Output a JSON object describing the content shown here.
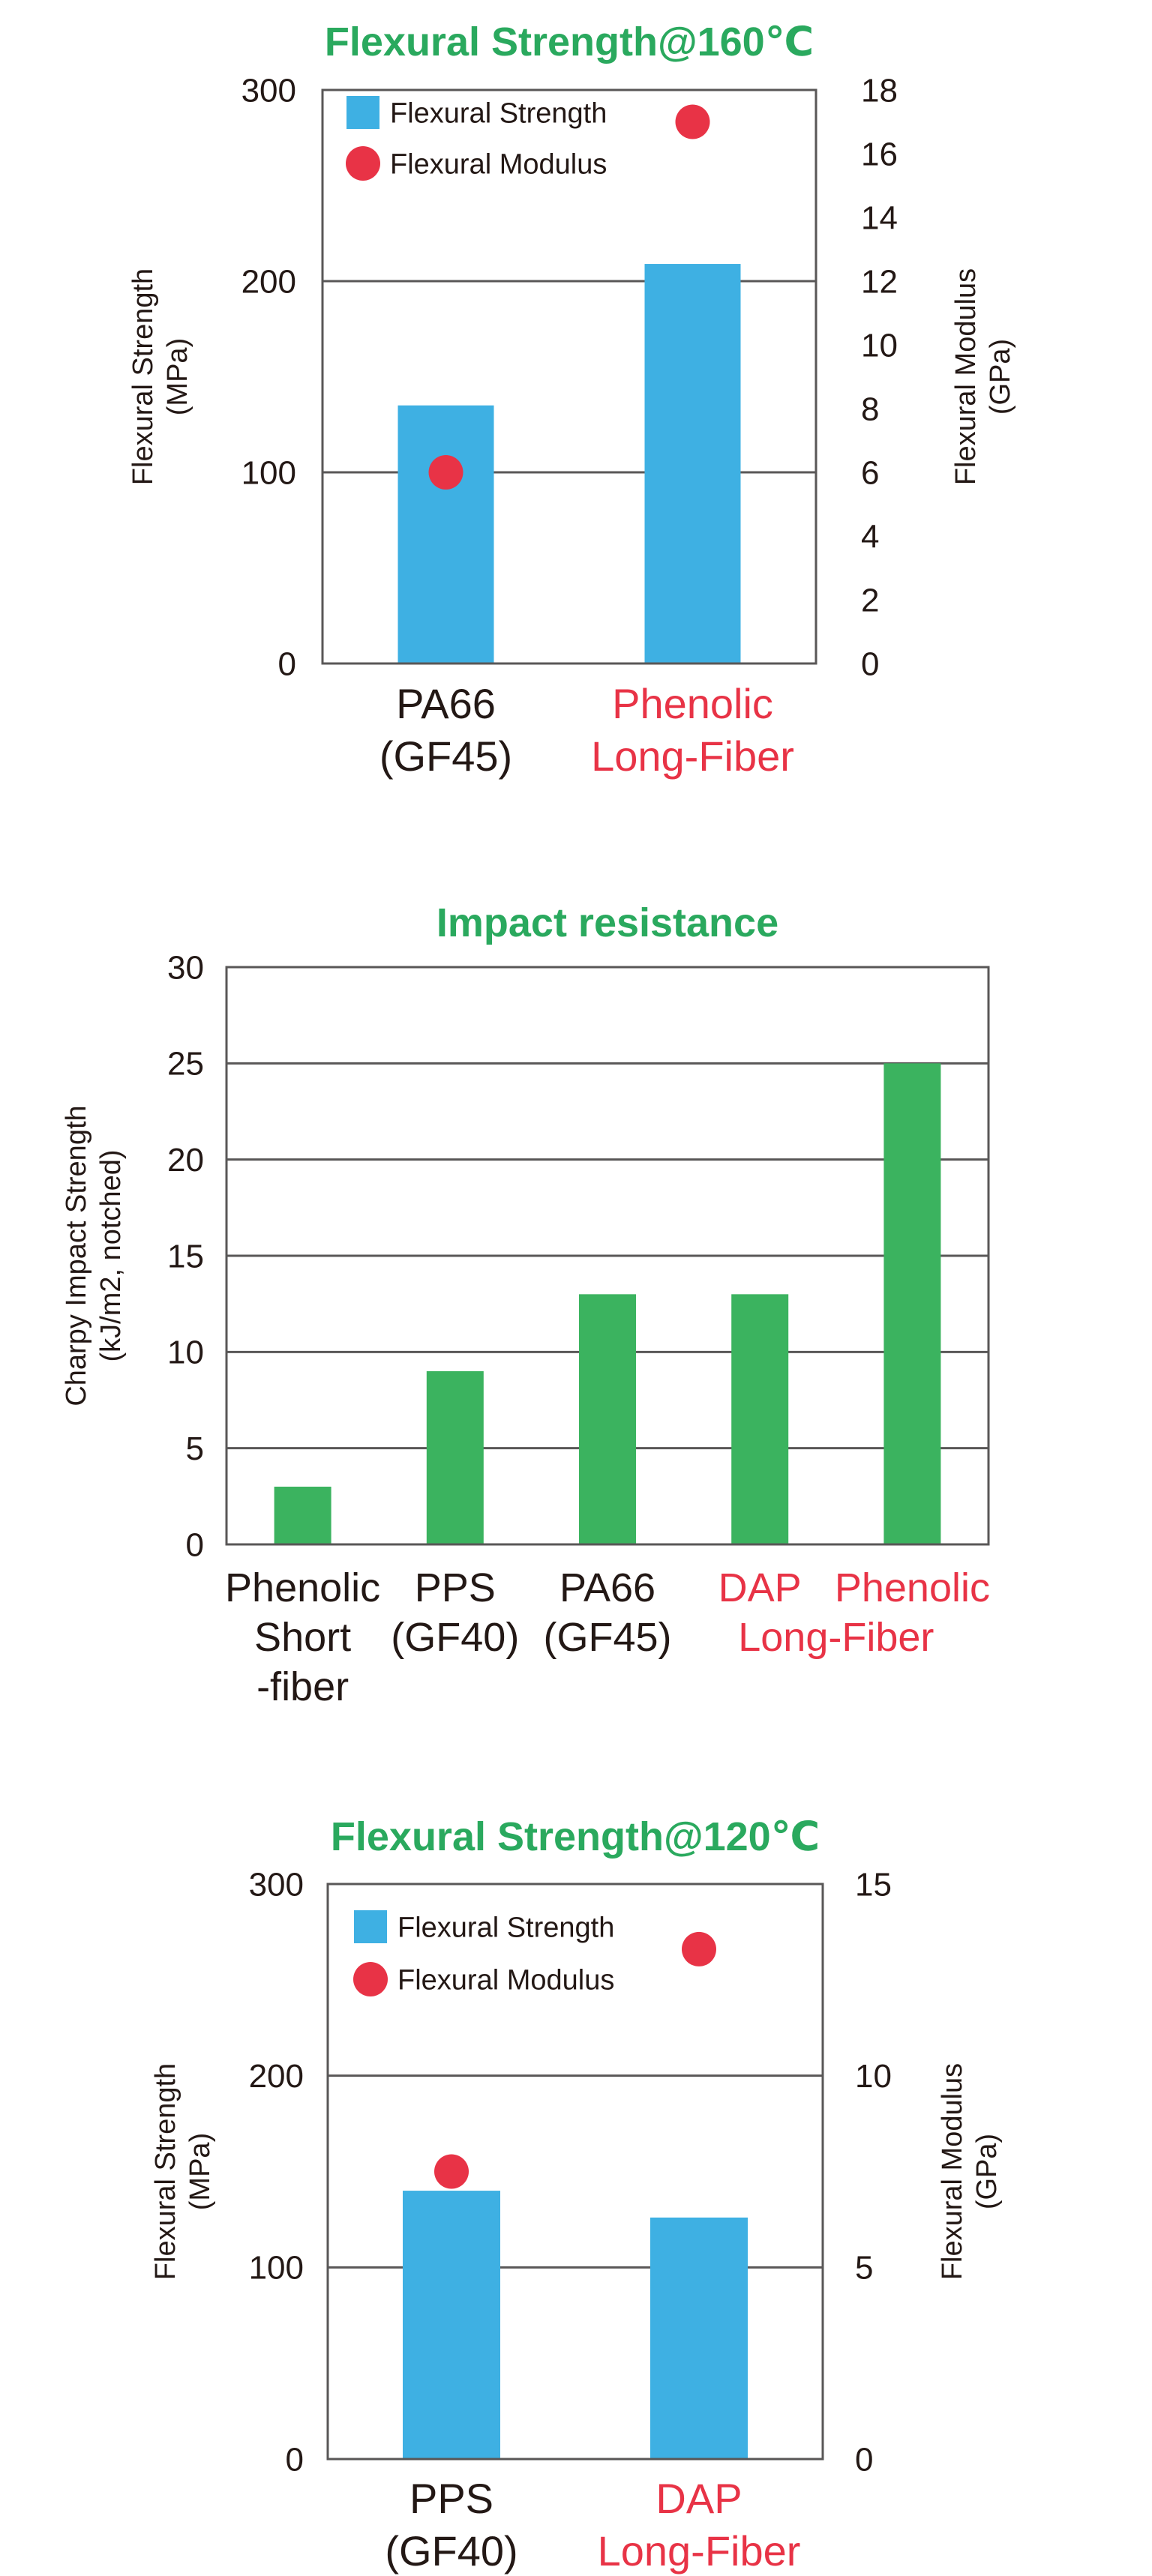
{
  "chart_data": [
    {
      "type": "bar",
      "title": "Flexural Strength@160℃",
      "categories": [
        {
          "lines": [
            "PA66",
            "(GF45)"
          ],
          "color": "#231815"
        },
        {
          "lines": [
            "Phenolic",
            "Long-Fiber"
          ],
          "color": "#e83346"
        }
      ],
      "series": [
        {
          "name": "Flexural Strength",
          "type": "bar",
          "axis": "left",
          "color": "#3eb0e3",
          "values": [
            135,
            209
          ]
        },
        {
          "name": "Flexural Modulus",
          "type": "scatter",
          "axis": "right",
          "color": "#e83346",
          "values": [
            6,
            17
          ]
        }
      ],
      "ylabel": [
        "Flexural Strength",
        "(MPa)"
      ],
      "ylim": [
        0,
        300
      ],
      "yticks": [
        0,
        100,
        200,
        300
      ],
      "y2label": [
        "Flexural Modulus",
        "(GPa)"
      ],
      "y2lim": [
        0,
        18
      ],
      "y2ticks": [
        0,
        2,
        4,
        6,
        8,
        10,
        12,
        14,
        16,
        18
      ],
      "legend": "top-left",
      "grid": true
    },
    {
      "type": "bar",
      "title": "Impact resistance",
      "categories": [
        {
          "lines": [
            "Phenolic",
            "Short",
            "-fiber"
          ],
          "color": "#231815"
        },
        {
          "lines": [
            "PPS",
            "(GF40)"
          ],
          "color": "#231815"
        },
        {
          "lines": [
            "PA66",
            "(GF45)"
          ],
          "color": "#231815"
        },
        {
          "lines": [
            "DAP"
          ],
          "color": "#e83346"
        },
        {
          "lines": [
            "Phenolic"
          ],
          "color": "#e83346"
        }
      ],
      "group_label": {
        "text": "Long-Fiber",
        "color": "#e83346"
      },
      "series": [
        {
          "type": "bar",
          "axis": "left",
          "color": "#3bb35f",
          "values": [
            3,
            9,
            13,
            13,
            25
          ]
        }
      ],
      "ylabel": [
        "Charpy Impact Strength",
        "(kJ/m2, notched)"
      ],
      "ylim": [
        0,
        30
      ],
      "yticks": [
        0,
        5,
        10,
        15,
        20,
        25,
        30
      ],
      "grid": true
    },
    {
      "type": "bar",
      "title": "Flexural Strength@120℃",
      "categories": [
        {
          "lines": [
            "PPS",
            "(GF40)"
          ],
          "color": "#231815"
        },
        {
          "lines": [
            "DAP",
            "Long-Fiber"
          ],
          "color": "#e83346"
        }
      ],
      "series": [
        {
          "name": "Flexural Strength",
          "type": "bar",
          "axis": "left",
          "color": "#3eb0e3",
          "values": [
            140,
            126
          ]
        },
        {
          "name": "Flexural Modulus",
          "type": "scatter",
          "axis": "right",
          "color": "#e83346",
          "values": [
            7.5,
            13.3
          ]
        }
      ],
      "ylabel": [
        "Flexural Strength",
        "(MPa)"
      ],
      "ylim": [
        0,
        300
      ],
      "yticks": [
        0,
        100,
        200,
        300
      ],
      "y2label": [
        "Flexural Modulus",
        "(GPa)"
      ],
      "y2lim": [
        0,
        15
      ],
      "y2ticks": [
        0,
        5,
        10,
        15
      ],
      "legend": "top-left",
      "grid": true
    }
  ],
  "style": {
    "title_color": "#2aa95e",
    "text_color": "#231815",
    "axis_color": "#595757"
  }
}
